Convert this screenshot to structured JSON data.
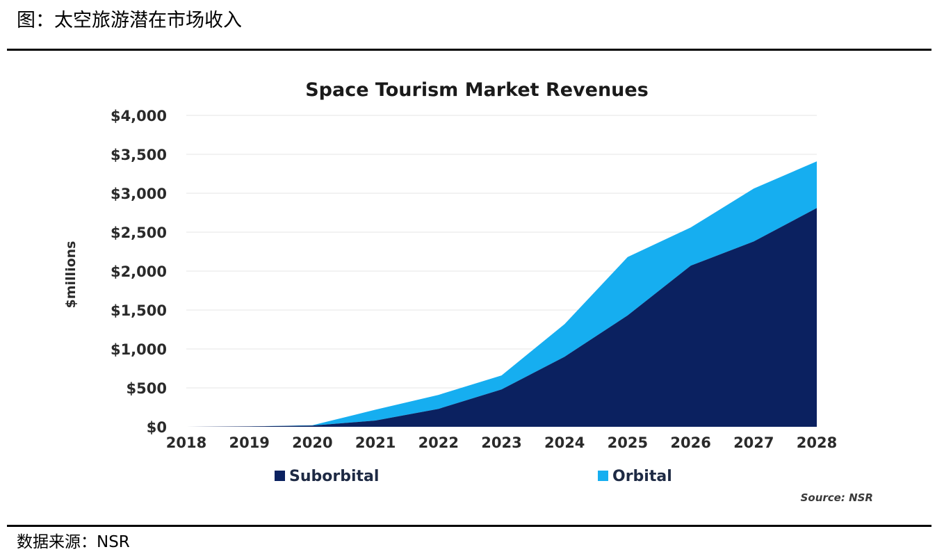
{
  "figure": {
    "title": "图：太空旅游潜在市场收入",
    "source": "数据来源：NSR"
  },
  "chart_data": {
    "type": "area",
    "stacked": true,
    "title": "Space Tourism Market Revenues",
    "xlabel": "",
    "ylabel": "$millions",
    "x": [
      2018,
      2019,
      2020,
      2021,
      2022,
      2023,
      2024,
      2025,
      2026,
      2027,
      2028
    ],
    "x_tick_labels": [
      "2018",
      "2019",
      "2020",
      "2021",
      "2022",
      "2023",
      "2024",
      "2025",
      "2026",
      "2027",
      "2028"
    ],
    "y_tick_labels": [
      "$0",
      "$500",
      "$1,000",
      "$1,500",
      "$2,000",
      "$2,500",
      "$3,000",
      "$3,500",
      "$4,000"
    ],
    "y_ticks": [
      0,
      500,
      1000,
      1500,
      2000,
      2500,
      3000,
      3500,
      4000
    ],
    "ylim": [
      0,
      4000
    ],
    "grid": true,
    "legend_position": "bottom",
    "series": [
      {
        "name": "Suborbital",
        "color": "#0b2160",
        "values": [
          0,
          5,
          15,
          80,
          230,
          480,
          900,
          1430,
          2070,
          2380,
          2810
        ]
      },
      {
        "name": "Orbital",
        "color": "#16aef0",
        "values": [
          0,
          0,
          5,
          140,
          180,
          180,
          420,
          750,
          490,
          680,
          600
        ]
      }
    ],
    "annotation": "Source: NSR"
  }
}
